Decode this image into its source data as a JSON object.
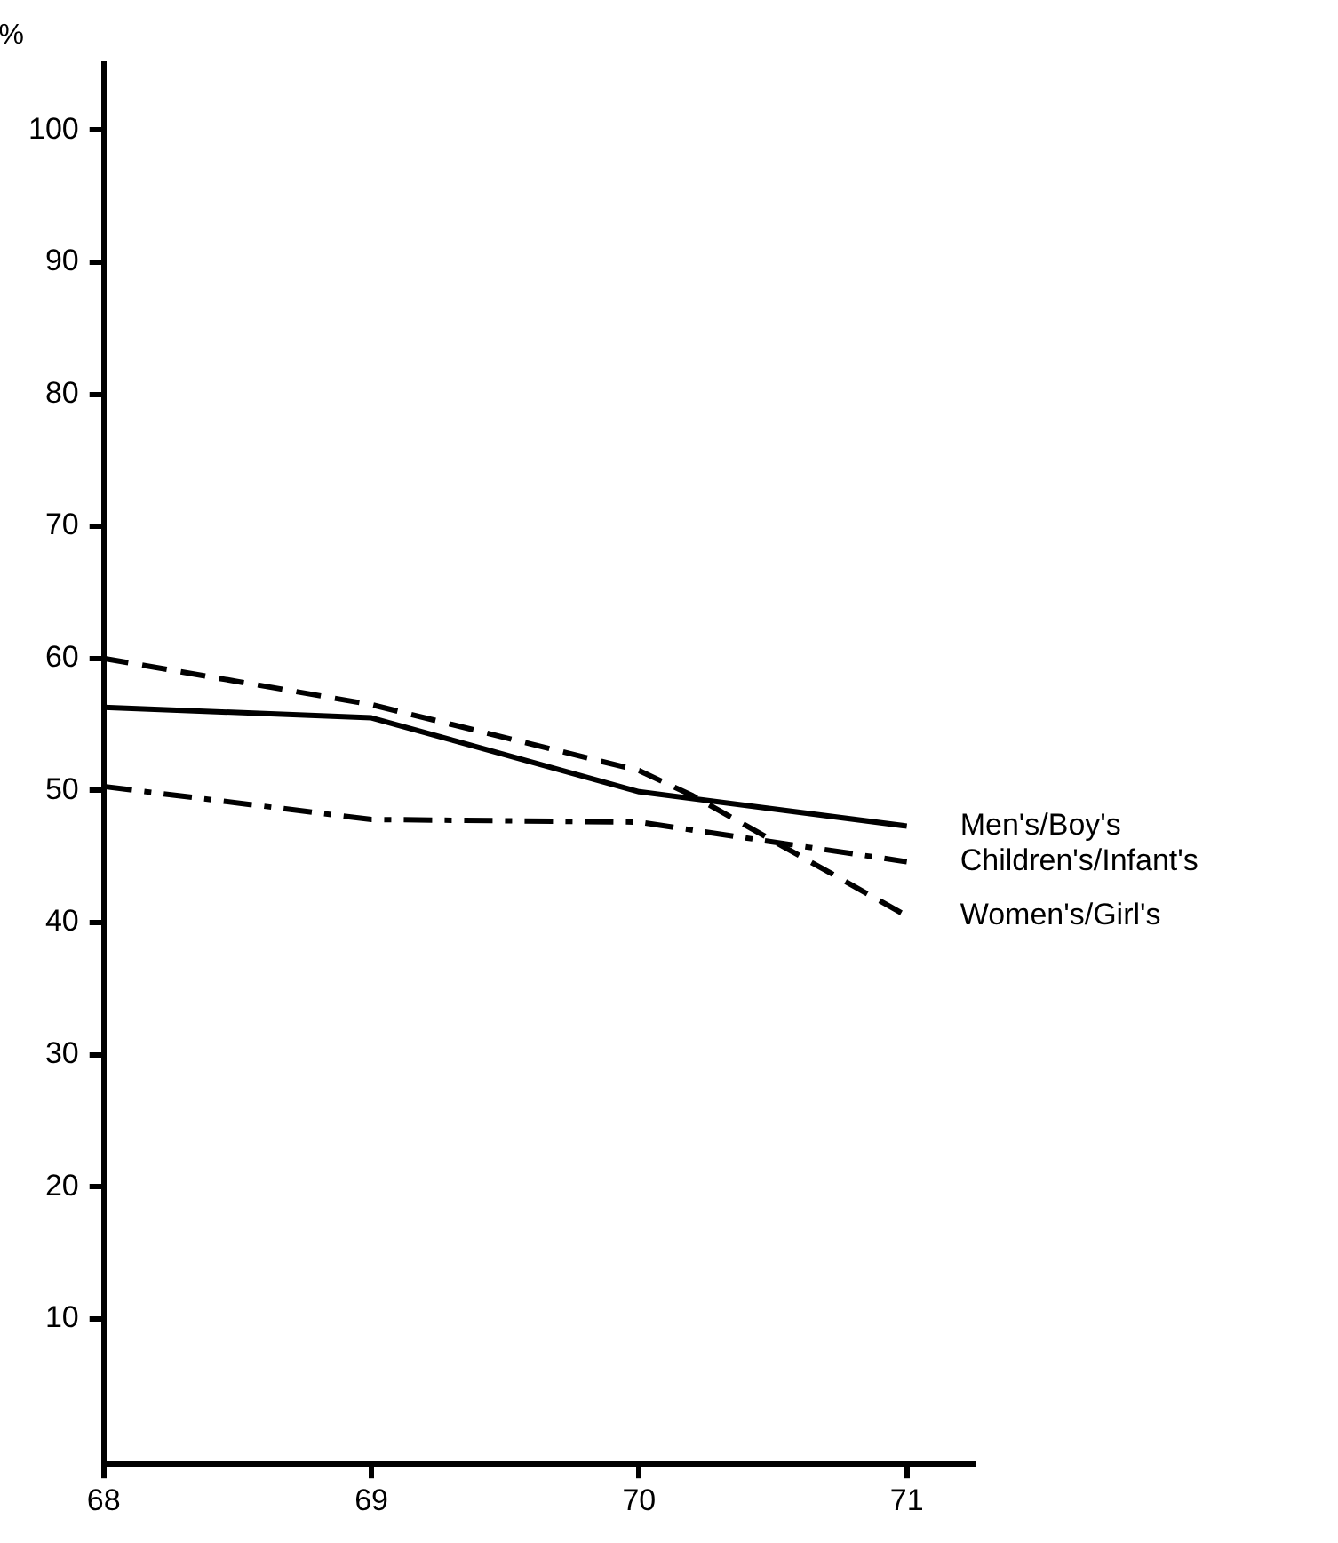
{
  "chart_data": {
    "type": "line",
    "ylabel": "%",
    "xlim": [
      68,
      71.25
    ],
    "xticks": [
      68,
      69,
      70,
      71
    ],
    "ylim": [
      -1,
      105
    ],
    "yticks": [
      10,
      20,
      30,
      40,
      50,
      60,
      70,
      80,
      90,
      100
    ],
    "legend": false,
    "marker": "none",
    "series": [
      {
        "name": "Men's/Boy's",
        "color": "#000000",
        "line_style": "solid",
        "x": [
          68,
          69,
          70,
          71
        ],
        "values": [
          56.3,
          55.5,
          49.9,
          47.3
        ]
      },
      {
        "name": "Children's/Infant's",
        "color": "#000000",
        "line_style": "dashdot",
        "x": [
          68,
          69,
          70,
          71
        ],
        "values": [
          50.3,
          47.8,
          47.6,
          44.6
        ]
      },
      {
        "name": "Women's/Girl's",
        "color": "#000000",
        "line_style": "dashed",
        "x": [
          68,
          69,
          70,
          70.2,
          71
        ],
        "values": [
          60,
          56.5,
          51.5,
          49.6,
          40.5
        ]
      }
    ]
  }
}
